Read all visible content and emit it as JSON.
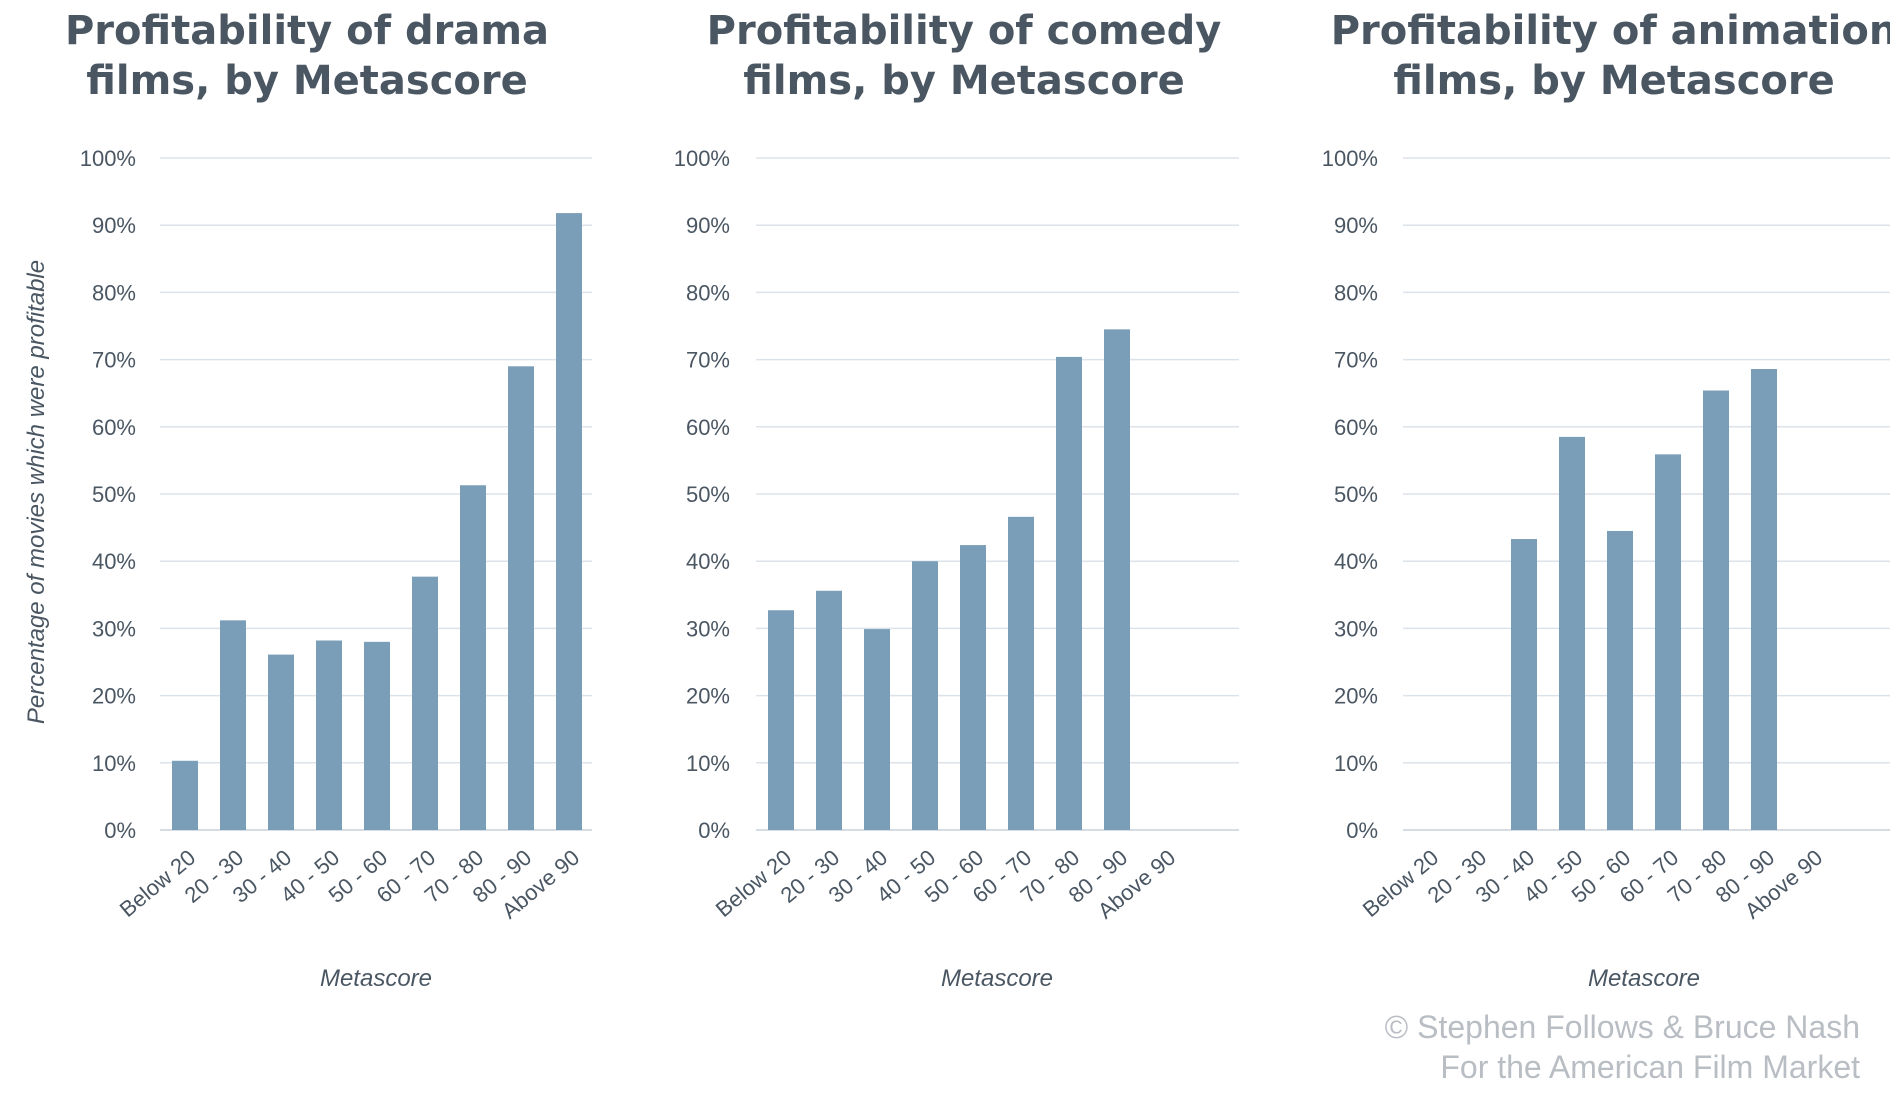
{
  "credit": {
    "line1": "© Stephen Follows & Bruce Nash",
    "line2": "For the American Film Market"
  },
  "colors": {
    "bar": "#7a9db8",
    "text": "#4a5763",
    "grid": "#dde3ea",
    "credit": "#b9bec4"
  },
  "shared_ylabel": "Percentage of movies which were profitable",
  "chart_data": [
    {
      "type": "bar",
      "title_lines": [
        "Profitability of drama",
        "films, by Metascore"
      ],
      "xlabel": "Metascore",
      "categories": [
        "Below 20",
        "20 - 30",
        "30 - 40",
        "40 - 50",
        "50 - 60",
        "60 - 70",
        "70 - 80",
        "80 - 90",
        "Above 90"
      ],
      "values": [
        10.3,
        31.2,
        26.1,
        28.2,
        28.0,
        37.7,
        51.3,
        69.0,
        91.8
      ],
      "ylim": [
        0,
        100
      ],
      "yticks": [
        "0%",
        "10%",
        "20%",
        "30%",
        "40%",
        "50%",
        "60%",
        "70%",
        "80%",
        "90%",
        "100%"
      ],
      "grid": true
    },
    {
      "type": "bar",
      "title_lines": [
        "Profitability of comedy",
        "films, by Metascore"
      ],
      "xlabel": "Metascore",
      "categories": [
        "Below 20",
        "20 - 30",
        "30 - 40",
        "40 - 50",
        "50 - 60",
        "60 - 70",
        "70 - 80",
        "80 - 90",
        "Above 90"
      ],
      "values": [
        32.7,
        35.6,
        29.9,
        40.0,
        42.4,
        46.6,
        70.4,
        74.5,
        null
      ],
      "ylim": [
        0,
        100
      ],
      "yticks": [
        "0%",
        "10%",
        "20%",
        "30%",
        "40%",
        "50%",
        "60%",
        "70%",
        "80%",
        "90%",
        "100%"
      ],
      "grid": true
    },
    {
      "type": "bar",
      "title_lines": [
        "Profitability of animation",
        "films, by Metascore"
      ],
      "xlabel": "Metascore",
      "categories": [
        "Below 20",
        "20 - 30",
        "30 - 40",
        "40 - 50",
        "50 - 60",
        "60 - 70",
        "70 - 80",
        "80 - 90",
        "Above 90"
      ],
      "values": [
        null,
        null,
        43.3,
        58.5,
        44.5,
        55.9,
        65.4,
        68.6,
        null
      ],
      "ylim": [
        0,
        100
      ],
      "yticks": [
        "0%",
        "10%",
        "20%",
        "30%",
        "40%",
        "50%",
        "60%",
        "70%",
        "80%",
        "90%",
        "100%"
      ],
      "grid": true
    }
  ]
}
